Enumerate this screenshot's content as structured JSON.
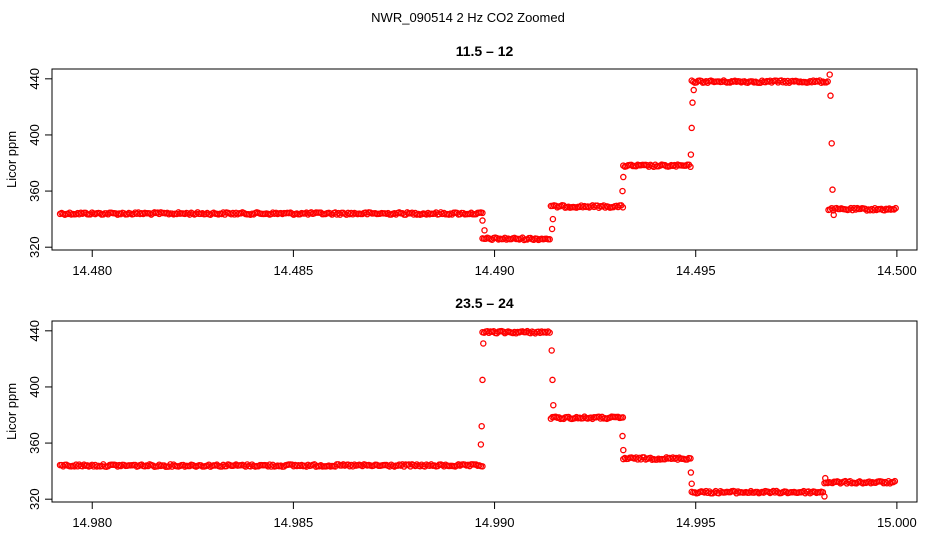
{
  "figure": {
    "title": "NWR_090514  2 Hz CO2 Zoomed"
  },
  "chart_data": [
    {
      "type": "scatter",
      "title": "11.5 – 12",
      "xlabel": "",
      "ylabel": "Licor ppm",
      "xlim": [
        14.479,
        14.5005
      ],
      "ylim": [
        318,
        447
      ],
      "xticks": [
        14.48,
        14.485,
        14.49,
        14.495,
        14.5
      ],
      "xtick_labels": [
        "14.480",
        "14.485",
        "14.490",
        "14.495",
        "14.500"
      ],
      "yticks": [
        320,
        360,
        400,
        440
      ],
      "ytick_labels": [
        "320",
        "360",
        "400",
        "440"
      ],
      "marker_color": "#ff0000",
      "marker": "open-circle",
      "grid": false,
      "legend": "none",
      "segments": [
        {
          "x0": 14.4792,
          "x1": 14.4897,
          "y": 344
        },
        {
          "x0": 14.4897,
          "x1": 14.4914,
          "y": 326
        },
        {
          "x0": 14.4914,
          "x1": 14.4932,
          "y": 349
        },
        {
          "x0": 14.4932,
          "x1": 14.4949,
          "y": 378
        },
        {
          "x0": 14.4949,
          "x1": 14.4983,
          "y": 438
        },
        {
          "x0": 14.4983,
          "x1": 14.5,
          "y": 347
        }
      ],
      "transitions": [
        {
          "x": 14.4897,
          "y": 339
        },
        {
          "x": 14.48975,
          "y": 332
        },
        {
          "x": 14.49143,
          "y": 333
        },
        {
          "x": 14.49145,
          "y": 340
        },
        {
          "x": 14.49318,
          "y": 360
        },
        {
          "x": 14.4932,
          "y": 370
        },
        {
          "x": 14.49488,
          "y": 386
        },
        {
          "x": 14.4949,
          "y": 405
        },
        {
          "x": 14.49492,
          "y": 423
        },
        {
          "x": 14.49495,
          "y": 432
        },
        {
          "x": 14.49833,
          "y": 443
        },
        {
          "x": 14.49835,
          "y": 428
        },
        {
          "x": 14.49838,
          "y": 394
        },
        {
          "x": 14.4984,
          "y": 361
        },
        {
          "x": 14.49843,
          "y": 343
        }
      ]
    },
    {
      "type": "scatter",
      "title": "23.5 – 24",
      "xlabel": "",
      "ylabel": "Licor ppm",
      "xlim": [
        14.979,
        15.0005
      ],
      "ylim": [
        318,
        447
      ],
      "xticks": [
        14.98,
        14.985,
        14.99,
        14.995,
        15.0
      ],
      "xtick_labels": [
        "14.980",
        "14.985",
        "14.990",
        "14.995",
        "15.000"
      ],
      "yticks": [
        320,
        360,
        400,
        440
      ],
      "ytick_labels": [
        "320",
        "360",
        "400",
        "440"
      ],
      "marker_color": "#ff0000",
      "marker": "open-circle",
      "grid": false,
      "legend": "none",
      "segments": [
        {
          "x0": 14.9792,
          "x1": 14.9897,
          "y": 344
        },
        {
          "x0": 14.9897,
          "x1": 14.9914,
          "y": 439
        },
        {
          "x0": 14.9914,
          "x1": 14.9932,
          "y": 378
        },
        {
          "x0": 14.9932,
          "x1": 14.9949,
          "y": 349
        },
        {
          "x0": 14.9949,
          "x1": 14.9982,
          "y": 325
        },
        {
          "x0": 14.9982,
          "x1": 14.99995,
          "y": 332
        }
      ],
      "transitions": [
        {
          "x": 14.98966,
          "y": 359
        },
        {
          "x": 14.98968,
          "y": 372
        },
        {
          "x": 14.9897,
          "y": 405
        },
        {
          "x": 14.98972,
          "y": 431
        },
        {
          "x": 14.99142,
          "y": 426
        },
        {
          "x": 14.99144,
          "y": 405
        },
        {
          "x": 14.99146,
          "y": 387
        },
        {
          "x": 14.99318,
          "y": 365
        },
        {
          "x": 14.9932,
          "y": 355
        },
        {
          "x": 14.99488,
          "y": 339
        },
        {
          "x": 14.9949,
          "y": 331
        },
        {
          "x": 14.9982,
          "y": 322
        },
        {
          "x": 14.99822,
          "y": 335
        }
      ]
    }
  ]
}
